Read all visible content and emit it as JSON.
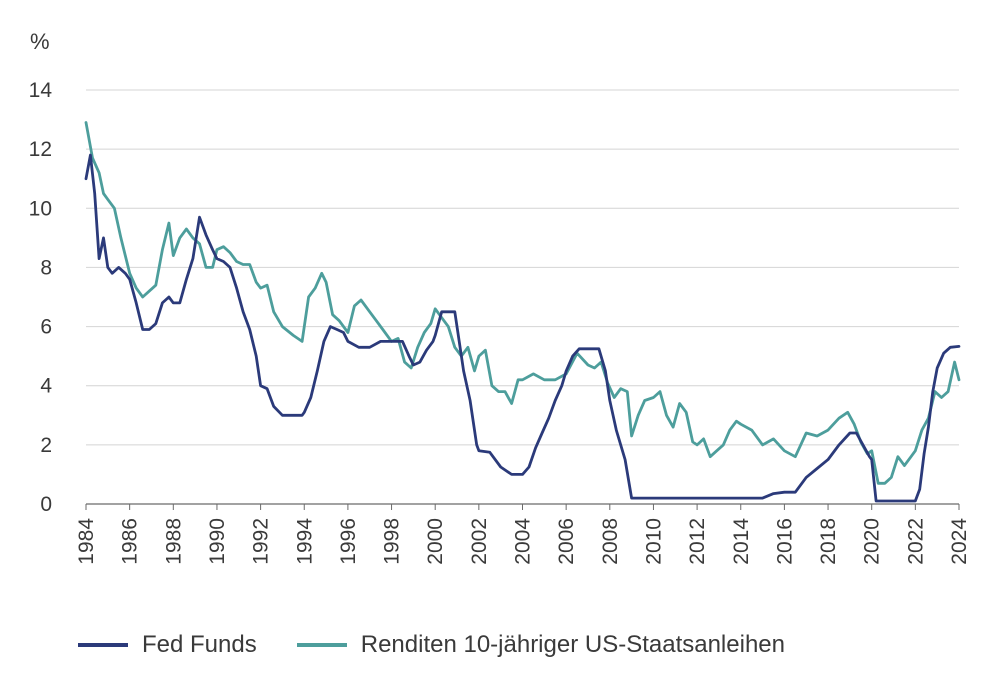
{
  "chart_data": {
    "type": "line",
    "ylabel": "%",
    "ylim": [
      0,
      14
    ],
    "yticks": [
      "0",
      "2",
      "4",
      "6",
      "8",
      "10",
      "12",
      "14"
    ],
    "xlim": [
      1984,
      2024
    ],
    "xticks": [
      "1984",
      "1986",
      "1988",
      "1990",
      "1992",
      "1994",
      "1996",
      "1998",
      "2000",
      "2002",
      "2004",
      "2006",
      "2008",
      "2010",
      "2012",
      "2014",
      "2016",
      "2018",
      "2020",
      "2022",
      "2024"
    ],
    "grid": true,
    "legend_position": "bottom-left",
    "series": [
      {
        "name": "Fed Funds",
        "color": "#2b3a7a",
        "x": [
          1984.0,
          1984.2,
          1984.4,
          1984.6,
          1984.8,
          1985.0,
          1985.2,
          1985.5,
          1985.8,
          1986.0,
          1986.3,
          1986.6,
          1986.9,
          1987.2,
          1987.5,
          1987.8,
          1988.0,
          1988.3,
          1988.6,
          1988.9,
          1989.2,
          1989.5,
          1989.8,
          1990.0,
          1990.3,
          1990.6,
          1990.9,
          1991.2,
          1991.5,
          1991.8,
          1992.0,
          1992.3,
          1992.6,
          1993.0,
          1993.5,
          1993.9,
          1994.0,
          1994.3,
          1994.6,
          1994.9,
          1995.2,
          1995.5,
          1995.8,
          1996.0,
          1996.5,
          1997.0,
          1997.5,
          1998.0,
          1998.5,
          1998.8,
          1999.0,
          1999.3,
          1999.6,
          1999.9,
          2000.0,
          2000.3,
          2000.6,
          2000.9,
          2001.0,
          2001.3,
          2001.6,
          2001.9,
          2002.0,
          2002.5,
          2003.0,
          2003.5,
          2004.0,
          2004.3,
          2004.6,
          2004.9,
          2005.2,
          2005.5,
          2005.8,
          2006.0,
          2006.3,
          2006.6,
          2007.0,
          2007.5,
          2007.8,
          2008.0,
          2008.3,
          2008.7,
          2009.0,
          2011.0,
          2013.0,
          2015.0,
          2015.5,
          2016.0,
          2016.5,
          2017.0,
          2017.5,
          2018.0,
          2018.5,
          2019.0,
          2019.3,
          2019.6,
          2019.9,
          2020.0,
          2020.2,
          2021.0,
          2022.0,
          2022.2,
          2022.4,
          2022.6,
          2022.8,
          2023.0,
          2023.3,
          2023.6,
          2024.0
        ],
        "y": [
          11,
          11.8,
          10.5,
          8.3,
          9.0,
          8.0,
          7.8,
          8.0,
          7.8,
          7.6,
          6.8,
          5.9,
          5.9,
          6.1,
          6.8,
          7.0,
          6.8,
          6.8,
          7.6,
          8.3,
          9.7,
          9.1,
          8.6,
          8.3,
          8.2,
          8.0,
          7.3,
          6.5,
          5.9,
          5.0,
          4.0,
          3.9,
          3.3,
          3.0,
          3.0,
          3.0,
          3.1,
          3.6,
          4.5,
          5.5,
          6.0,
          5.9,
          5.8,
          5.5,
          5.3,
          5.3,
          5.5,
          5.5,
          5.5,
          5.0,
          4.7,
          4.8,
          5.2,
          5.5,
          5.7,
          6.5,
          6.5,
          6.5,
          6.0,
          4.5,
          3.5,
          2.0,
          1.8,
          1.75,
          1.25,
          1.0,
          1.0,
          1.25,
          1.9,
          2.4,
          2.9,
          3.5,
          4.0,
          4.5,
          5.0,
          5.25,
          5.25,
          5.25,
          4.5,
          3.5,
          2.5,
          1.5,
          0.2,
          0.2,
          0.2,
          0.2,
          0.35,
          0.4,
          0.4,
          0.9,
          1.2,
          1.5,
          2.0,
          2.4,
          2.4,
          2.0,
          1.6,
          1.5,
          0.1,
          0.1,
          0.1,
          0.5,
          1.7,
          2.6,
          3.8,
          4.6,
          5.1,
          5.3,
          5.33
        ]
      },
      {
        "name": "Renditen 10-jähriger US-Staatsanleihen",
        "color": "#4d9e9c",
        "x": [
          1984.0,
          1984.3,
          1984.6,
          1984.8,
          1985.0,
          1985.3,
          1985.6,
          1986.0,
          1986.3,
          1986.6,
          1986.9,
          1987.2,
          1987.5,
          1987.8,
          1988.0,
          1988.3,
          1988.6,
          1988.9,
          1989.2,
          1989.5,
          1989.8,
          1990.0,
          1990.3,
          1990.6,
          1990.9,
          1991.2,
          1991.5,
          1991.8,
          1992.0,
          1992.3,
          1992.6,
          1993.0,
          1993.5,
          1993.9,
          1994.2,
          1994.5,
          1994.8,
          1995.0,
          1995.3,
          1995.6,
          1996.0,
          1996.3,
          1996.6,
          1997.0,
          1997.3,
          1997.6,
          1998.0,
          1998.3,
          1998.6,
          1998.9,
          1999.2,
          1999.5,
          1999.8,
          2000.0,
          2000.3,
          2000.6,
          2000.9,
          2001.2,
          2001.5,
          2001.8,
          2002.0,
          2002.3,
          2002.6,
          2002.9,
          2003.2,
          2003.5,
          2003.8,
          2004.0,
          2004.5,
          2005.0,
          2005.5,
          2006.0,
          2006.5,
          2007.0,
          2007.3,
          2007.6,
          2007.9,
          2008.2,
          2008.5,
          2008.8,
          2009.0,
          2009.3,
          2009.6,
          2010.0,
          2010.3,
          2010.6,
          2010.9,
          2011.2,
          2011.5,
          2011.8,
          2012.0,
          2012.3,
          2012.6,
          2012.9,
          2013.2,
          2013.5,
          2013.8,
          2014.0,
          2014.5,
          2015.0,
          2015.5,
          2016.0,
          2016.5,
          2017.0,
          2017.5,
          2018.0,
          2018.5,
          2018.9,
          2019.2,
          2019.5,
          2019.8,
          2020.0,
          2020.3,
          2020.6,
          2020.9,
          2021.2,
          2021.5,
          2021.8,
          2022.0,
          2022.3,
          2022.6,
          2022.9,
          2023.2,
          2023.5,
          2023.8,
          2024.0
        ],
        "y": [
          12.9,
          11.7,
          11.2,
          10.5,
          10.3,
          10.0,
          9.0,
          7.8,
          7.3,
          7.0,
          7.2,
          7.4,
          8.6,
          9.5,
          8.4,
          9.0,
          9.3,
          9.0,
          8.8,
          8.0,
          8.0,
          8.6,
          8.7,
          8.5,
          8.2,
          8.1,
          8.1,
          7.5,
          7.3,
          7.4,
          6.5,
          6.0,
          5.7,
          5.5,
          7.0,
          7.3,
          7.8,
          7.5,
          6.4,
          6.2,
          5.8,
          6.7,
          6.9,
          6.5,
          6.2,
          5.9,
          5.5,
          5.6,
          4.8,
          4.6,
          5.3,
          5.8,
          6.1,
          6.6,
          6.3,
          6.0,
          5.3,
          5.0,
          5.3,
          4.5,
          5.0,
          5.2,
          4.0,
          3.8,
          3.8,
          3.4,
          4.2,
          4.2,
          4.4,
          4.2,
          4.2,
          4.4,
          5.1,
          4.7,
          4.6,
          4.8,
          4.1,
          3.6,
          3.9,
          3.8,
          2.3,
          3.0,
          3.5,
          3.6,
          3.8,
          3.0,
          2.6,
          3.4,
          3.1,
          2.1,
          2.0,
          2.2,
          1.6,
          1.8,
          2.0,
          2.5,
          2.8,
          2.7,
          2.5,
          2.0,
          2.2,
          1.8,
          1.6,
          2.4,
          2.3,
          2.5,
          2.9,
          3.1,
          2.7,
          2.1,
          1.7,
          1.8,
          0.7,
          0.7,
          0.9,
          1.6,
          1.3,
          1.6,
          1.8,
          2.5,
          2.9,
          3.8,
          3.6,
          3.8,
          4.8,
          4.2
        ]
      }
    ]
  }
}
